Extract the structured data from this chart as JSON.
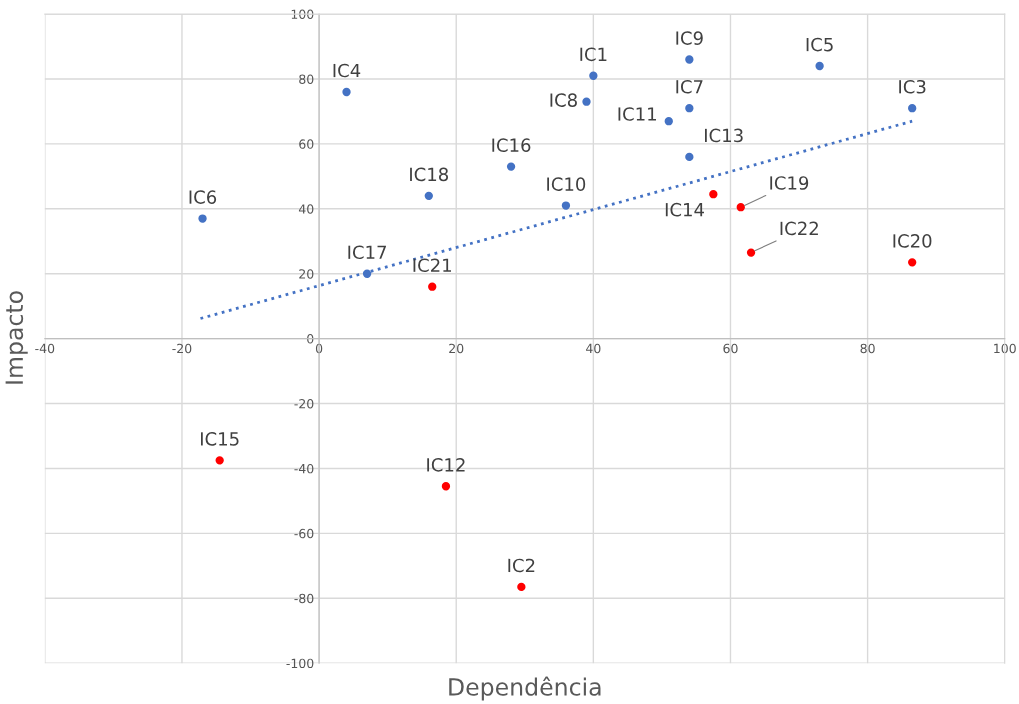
{
  "chart_data": {
    "type": "scatter",
    "xlabel": "Dependência",
    "ylabel": "Impacto",
    "xlim": [
      -40,
      100
    ],
    "xticks": [
      -40,
      -20,
      0,
      20,
      40,
      60,
      80,
      100
    ],
    "ylim": [
      -100,
      100
    ],
    "yticks": [
      -100,
      -80,
      -60,
      -40,
      -20,
      0,
      20,
      40,
      60,
      80,
      100
    ],
    "grid": true,
    "marker": "circle",
    "series": [
      {
        "color": "#4472c4",
        "x": [
          40,
          54,
          73,
          86.5,
          4,
          39,
          54,
          51,
          54,
          28,
          16,
          36,
          -17,
          7
        ],
        "values": [
          81,
          86,
          84,
          71,
          76,
          73,
          71,
          67,
          56,
          53,
          44,
          41,
          37,
          20
        ]
      },
      {
        "color": "#ff0000",
        "x": [
          16.5,
          57.5,
          61.5,
          63,
          86.5,
          -14.5,
          18.5,
          29.5
        ],
        "values": [
          16,
          44.5,
          40.5,
          26.5,
          23.5,
          -37.5,
          -45.5,
          -76.5
        ]
      },
      {
        "type": "line",
        "color": "#4472c4",
        "line_style": "dotted",
        "marker": "none",
        "x": [
          -17.3,
          86.5
        ],
        "values": [
          6.2,
          67
        ]
      }
    ],
    "annotations": [
      {
        "text": "IC1",
        "x": 40,
        "y": 81
      },
      {
        "text": "IC9",
        "x": 54,
        "y": 86
      },
      {
        "text": "IC5",
        "x": 73,
        "y": 84
      },
      {
        "text": "IC3",
        "x": 86.5,
        "y": 71
      },
      {
        "text": "IC4",
        "x": 4,
        "y": 76
      },
      {
        "text": "IC8",
        "x": 39,
        "y": 73
      },
      {
        "text": "IC7",
        "x": 54,
        "y": 71
      },
      {
        "text": "IC11",
        "x": 51,
        "y": 67
      },
      {
        "text": "IC13",
        "x": 54,
        "y": 56
      },
      {
        "text": "IC16",
        "x": 28,
        "y": 53
      },
      {
        "text": "IC18",
        "x": 16,
        "y": 44
      },
      {
        "text": "IC10",
        "x": 36,
        "y": 41
      },
      {
        "text": "IC6",
        "x": -17,
        "y": 37
      },
      {
        "text": "IC17",
        "x": 7,
        "y": 20
      },
      {
        "text": "IC21",
        "x": 16.5,
        "y": 16
      },
      {
        "text": "IC14",
        "x": 57.5,
        "y": 44.5
      },
      {
        "text": "IC19",
        "x": 61.5,
        "y": 40.5
      },
      {
        "text": "IC22",
        "x": 63,
        "y": 26.5
      },
      {
        "text": "IC20",
        "x": 86.5,
        "y": 23.5
      },
      {
        "text": "IC15",
        "x": -14.5,
        "y": -37.5
      },
      {
        "text": "IC12",
        "x": 18.5,
        "y": -45.5
      },
      {
        "text": "IC2",
        "x": 29.5,
        "y": -76.5
      }
    ]
  }
}
